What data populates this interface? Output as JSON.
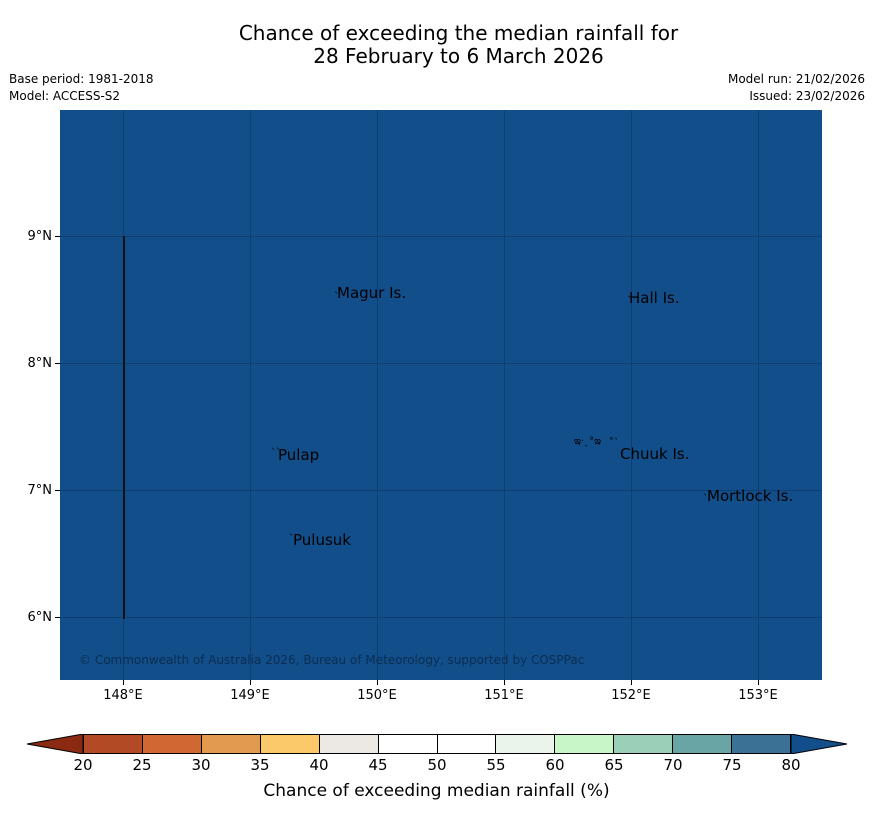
{
  "title": {
    "line1": "Chance of exceeding the median rainfall for",
    "line2": "28 February to 6 March 2026"
  },
  "meta": {
    "base_period": "Base period: 1981-2018",
    "model": "Model: ACCESS-S2",
    "model_run": "Model run: 21/02/2026",
    "issued": "Issued: 23/02/2026"
  },
  "map": {
    "background_color": "#124e89",
    "places": {
      "magur": "Magur Is.",
      "hall": "Hall Is.",
      "pulap": "Pulap",
      "chuuk": "Chuuk Is.",
      "mortlock": "Mortlock Is.",
      "pulusuk": "Pulusuk"
    },
    "copyright": "© Commonwealth of Australia 2026, Bureau of Meteorology, supported by COSPPac",
    "lat_labels": [
      "9°N",
      "8°N",
      "7°N",
      "6°N"
    ],
    "lon_labels": [
      "148°E",
      "149°E",
      "150°E",
      "151°E",
      "152°E",
      "153°E"
    ]
  },
  "colorbar": {
    "title": "Chance of exceeding median rainfall (%)",
    "ticks": [
      "20",
      "25",
      "30",
      "35",
      "40",
      "45",
      "50",
      "55",
      "60",
      "65",
      "70",
      "75",
      "80"
    ],
    "colors": [
      "#b24a26",
      "#d16834",
      "#e19a4e",
      "#fcc96a",
      "#ece9e4",
      "#ffffff",
      "#ffffff",
      "#eaf4ea",
      "#c8f6c8",
      "#9bcfb8",
      "#6aa5a5",
      "#3b7195"
    ],
    "under_color": "#8a2a12",
    "over_color": "#124e89"
  }
}
